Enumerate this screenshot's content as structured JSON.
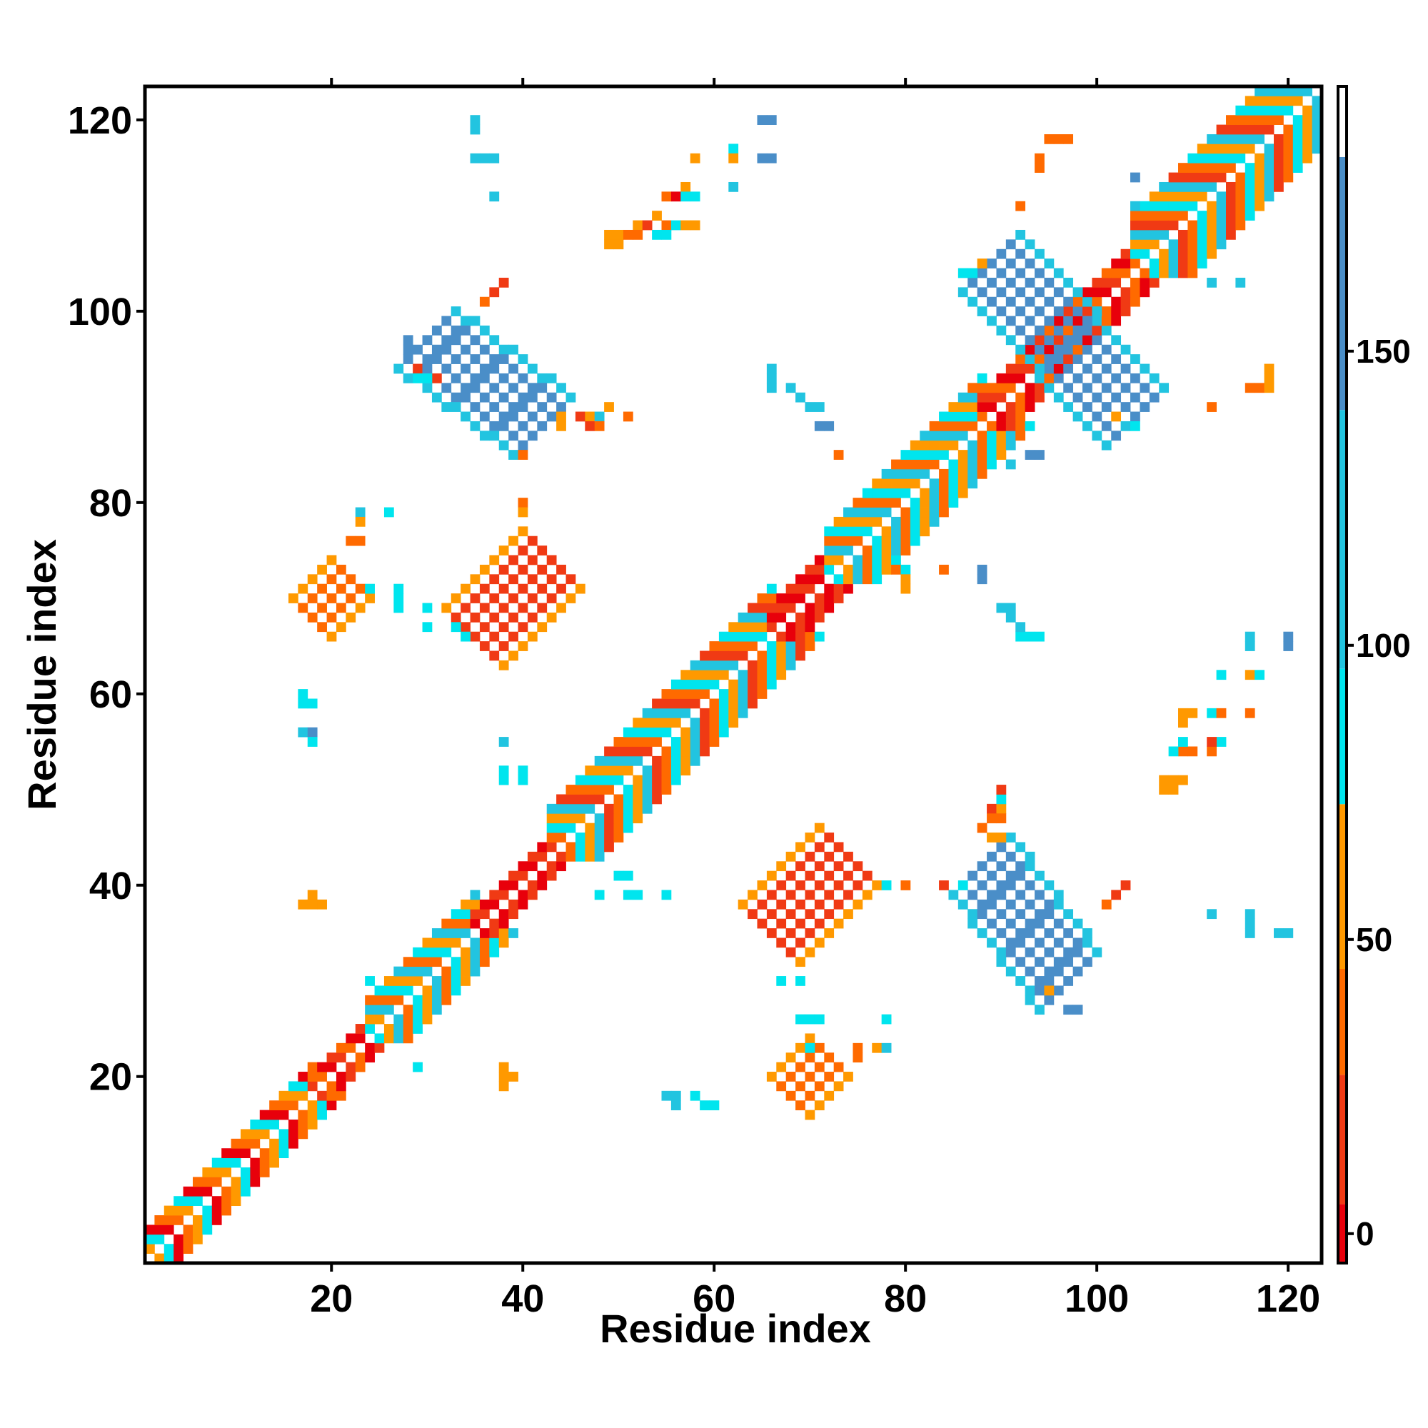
{
  "chart_data": {
    "type": "heatmap",
    "title": "",
    "xlabel": "Residue index",
    "ylabel": "Residue index",
    "xlim": [
      0.5,
      123.5
    ],
    "ylim": [
      0.5,
      123.5
    ],
    "x_ticks": [
      20,
      40,
      60,
      80,
      100,
      120
    ],
    "y_ticks": [
      20,
      40,
      60,
      80,
      100,
      120
    ],
    "colorbar": {
      "range": [
        -5,
        195
      ],
      "ticks": [
        0,
        50,
        100,
        150
      ],
      "bands": [
        {
          "from": -5,
          "to": 5,
          "color": "#e8000b"
        },
        {
          "from": 5,
          "to": 27,
          "color": "#f03a14"
        },
        {
          "from": 27,
          "to": 45,
          "color": "#ff6a00"
        },
        {
          "from": 45,
          "to": 73,
          "color": "#ff9900"
        },
        {
          "from": 73,
          "to": 96,
          "color": "#00e5ee"
        },
        {
          "from": 96,
          "to": 140,
          "color": "#22c4e0"
        },
        {
          "from": 140,
          "to": 183,
          "color": "#4a8ec8"
        },
        {
          "from": 183,
          "to": 195,
          "color": "#ffffff"
        }
      ]
    },
    "grid": false,
    "regions": {
      "diagonal": {
        "segments": [
          {
            "from": 1,
            "to": 18,
            "half_width": 3,
            "pattern": [
              "#e8000b",
              "#ff6a00",
              "#ff9900",
              "#00e5ee"
            ]
          },
          {
            "from": 18,
            "to": 24,
            "half_width": 2,
            "pattern": [
              "#e8000b",
              "#f03a14",
              "#ff6a00"
            ]
          },
          {
            "from": 24,
            "to": 35,
            "half_width": 4,
            "pattern": [
              "#ff6a00",
              "#00e5ee",
              "#ff9900",
              "#22c4e0"
            ]
          },
          {
            "from": 35,
            "to": 43,
            "half_width": 2,
            "pattern": [
              "#e8000b",
              "#f03a14"
            ]
          },
          {
            "from": 43,
            "to": 66,
            "half_width": 5,
            "pattern": [
              "#ff6a00",
              "#00e5ee",
              "#ff9900",
              "#22c4e0",
              "#f03a14"
            ]
          },
          {
            "from": 66,
            "to": 72,
            "half_width": 3,
            "pattern": [
              "#e8000b",
              "#f03a14"
            ]
          },
          {
            "from": 72,
            "to": 88,
            "half_width": 5,
            "pattern": [
              "#ff6a00",
              "#00e5ee",
              "#ff9900",
              "#22c4e0"
            ]
          },
          {
            "from": 88,
            "to": 104,
            "half_width": 3,
            "pattern": [
              "#e8000b",
              "#f03a14",
              "#ff6a00"
            ]
          },
          {
            "from": 104,
            "to": 124,
            "half_width": 6,
            "pattern": [
              "#ff6a00",
              "#00e5ee",
              "#ff9900",
              "#22c4e0",
              "#f03a14"
            ]
          }
        ]
      },
      "anti_diagonal_bands": [
        {
          "x_from": 30,
          "x_to": 42,
          "y_from": 97,
          "y_to": 88,
          "half_width": 2,
          "color": "#4a8ec8",
          "edge_color": "#22c4e0"
        },
        {
          "x_from": 88,
          "x_to": 97,
          "y_from": 42,
          "y_to": 30,
          "half_width": 2,
          "color": "#4a8ec8",
          "edge_color": "#22c4e0"
        },
        {
          "x_from": 89,
          "x_to": 104,
          "y_from": 105,
          "y_to": 89,
          "half_width": 2,
          "color": "#4a8ec8",
          "edge_color": "#22c4e0"
        }
      ],
      "parallel_bands": [
        {
          "x_from": 35,
          "x_to": 43,
          "y_from": 66,
          "y_to": 74,
          "half_width": 2,
          "color": "#f03a14",
          "edge_color": "#ff9900"
        },
        {
          "x_from": 66,
          "x_to": 74,
          "y_from": 35,
          "y_to": 43,
          "half_width": 2,
          "color": "#f03a14",
          "edge_color": "#ff9900"
        },
        {
          "x_from": 18,
          "x_to": 22,
          "y_from": 68,
          "y_to": 72,
          "half_width": 1,
          "color": "#ff6a00",
          "edge_color": "#ff9900"
        },
        {
          "x_from": 68,
          "x_to": 72,
          "y_from": 18,
          "y_to": 22,
          "half_width": 1,
          "color": "#ff6a00",
          "edge_color": "#ff9900"
        }
      ],
      "scattered_cells": [
        [
          35,
          120,
          "#22c4e0"
        ],
        [
          35,
          119,
          "#22c4e0"
        ],
        [
          35,
          116,
          "#22c4e0"
        ],
        [
          36,
          116,
          "#22c4e0"
        ],
        [
          37,
          116,
          "#22c4e0"
        ],
        [
          37,
          112,
          "#22c4e0"
        ],
        [
          65,
          120,
          "#4a8ec8"
        ],
        [
          66,
          120,
          "#4a8ec8"
        ],
        [
          65,
          116,
          "#4a8ec8"
        ],
        [
          66,
          116,
          "#4a8ec8"
        ],
        [
          62,
          117,
          "#00e5ee"
        ],
        [
          62,
          116,
          "#ff9900"
        ],
        [
          62,
          113,
          "#22c4e0"
        ],
        [
          58,
          116,
          "#ff9900"
        ],
        [
          57,
          113,
          "#ff9900"
        ],
        [
          55,
          112,
          "#ff6a00"
        ],
        [
          56,
          112,
          "#e8000b"
        ],
        [
          57,
          112,
          "#00e5ee"
        ],
        [
          58,
          112,
          "#00e5ee"
        ],
        [
          52,
          109,
          "#ff9900"
        ],
        [
          53,
          109,
          "#f03a14"
        ],
        [
          54,
          110,
          "#ff9900"
        ],
        [
          55,
          109,
          "#ff6a00"
        ],
        [
          56,
          109,
          "#00e5ee"
        ],
        [
          57,
          109,
          "#ff9900"
        ],
        [
          58,
          109,
          "#ff9900"
        ],
        [
          49,
          108,
          "#ff9900"
        ],
        [
          50,
          108,
          "#ff9900"
        ],
        [
          49,
          107,
          "#ff9900"
        ],
        [
          50,
          107,
          "#ff9900"
        ],
        [
          51,
          108,
          "#ff6a00"
        ],
        [
          52,
          108,
          "#ff6a00"
        ],
        [
          54,
          108,
          "#00e5ee"
        ],
        [
          55,
          108,
          "#00e5ee"
        ],
        [
          38,
          103,
          "#f03a14"
        ],
        [
          37,
          102,
          "#f03a14"
        ],
        [
          36,
          101,
          "#ff6a00"
        ],
        [
          28,
          97,
          "#4a8ec8"
        ],
        [
          28,
          96,
          "#4a8ec8"
        ],
        [
          29,
          94,
          "#f03a14"
        ],
        [
          29,
          93,
          "#00e5ee"
        ],
        [
          30,
          93,
          "#00e5ee"
        ],
        [
          31,
          93,
          "#f03a14"
        ],
        [
          44,
          89,
          "#ff9900"
        ],
        [
          44,
          88,
          "#ff9900"
        ],
        [
          46,
          89,
          "#f03a14"
        ],
        [
          47,
          89,
          "#ff9900"
        ],
        [
          47,
          88,
          "#f03a14"
        ],
        [
          48,
          89,
          "#22c4e0"
        ],
        [
          48,
          88,
          "#ff6a00"
        ],
        [
          49,
          90,
          "#ff9900"
        ],
        [
          51,
          89,
          "#ff6a00"
        ],
        [
          40,
          85,
          "#ff6a00"
        ],
        [
          40,
          80,
          "#ff6a00"
        ],
        [
          40,
          79,
          "#ff9900"
        ],
        [
          23,
          79,
          "#22c4e0"
        ],
        [
          23,
          78,
          "#ff9900"
        ],
        [
          26,
          79,
          "#00e5ee"
        ],
        [
          22,
          76,
          "#ff6a00"
        ],
        [
          23,
          76,
          "#ff6a00"
        ],
        [
          24,
          71,
          "#00e5ee"
        ],
        [
          27,
          71,
          "#00e5ee"
        ],
        [
          27,
          70,
          "#00e5ee"
        ],
        [
          27,
          69,
          "#00e5ee"
        ],
        [
          30,
          69,
          "#00e5ee"
        ],
        [
          30,
          67,
          "#00e5ee"
        ],
        [
          33,
          67,
          "#00e5ee"
        ],
        [
          34,
          66,
          "#00e5ee"
        ],
        [
          17,
          60,
          "#00e5ee"
        ],
        [
          17,
          59,
          "#00e5ee"
        ],
        [
          18,
          59,
          "#00e5ee"
        ],
        [
          17,
          56,
          "#22c4e0"
        ],
        [
          18,
          56,
          "#4a8ec8"
        ],
        [
          18,
          55,
          "#00e5ee"
        ],
        [
          38,
          55,
          "#22c4e0"
        ],
        [
          38,
          52,
          "#00e5ee"
        ],
        [
          40,
          52,
          "#00e5ee"
        ],
        [
          38,
          51,
          "#00e5ee"
        ],
        [
          40,
          51,
          "#00e5ee"
        ],
        [
          18,
          39,
          "#ff9900"
        ],
        [
          17,
          38,
          "#ff9900"
        ],
        [
          18,
          38,
          "#ff9900"
        ],
        [
          19,
          38,
          "#ff9900"
        ],
        [
          38,
          21,
          "#ff9900"
        ],
        [
          38,
          20,
          "#ff9900"
        ],
        [
          39,
          20,
          "#ff9900"
        ],
        [
          38,
          19,
          "#ff9900"
        ],
        [
          24,
          30,
          "#00e5ee"
        ],
        [
          29,
          21,
          "#00e5ee"
        ],
        [
          55,
          18,
          "#22c4e0"
        ],
        [
          56,
          18,
          "#22c4e0"
        ],
        [
          56,
          17,
          "#22c4e0"
        ],
        [
          58,
          18,
          "#00e5ee"
        ],
        [
          59,
          17,
          "#00e5ee"
        ],
        [
          60,
          17,
          "#00e5ee"
        ],
        [
          50,
          41,
          "#00e5ee"
        ],
        [
          51,
          41,
          "#00e5ee"
        ],
        [
          51,
          39,
          "#00e5ee"
        ],
        [
          52,
          39,
          "#00e5ee"
        ],
        [
          55,
          39,
          "#00e5ee"
        ],
        [
          48,
          39,
          "#00e5ee"
        ],
        [
          67,
          30,
          "#00e5ee"
        ],
        [
          69,
          30,
          "#00e5ee"
        ],
        [
          69,
          26,
          "#00e5ee"
        ],
        [
          70,
          26,
          "#00e5ee"
        ],
        [
          71,
          26,
          "#00e5ee"
        ],
        [
          78,
          26,
          "#00e5ee"
        ],
        [
          75,
          23,
          "#ff6a00"
        ],
        [
          75,
          22,
          "#ff6a00"
        ],
        [
          77,
          23,
          "#ff9900"
        ],
        [
          78,
          23,
          "#22c4e0"
        ],
        [
          70,
          23,
          "#00e5ee"
        ],
        [
          78,
          40,
          "#00e5ee"
        ],
        [
          80,
          40,
          "#ff6a00"
        ],
        [
          84,
          40,
          "#f03a14"
        ],
        [
          86,
          40,
          "#00e5ee"
        ],
        [
          97,
          27,
          "#4a8ec8"
        ],
        [
          98,
          27,
          "#4a8ec8"
        ],
        [
          95,
          29,
          "#ff9900"
        ],
        [
          89,
          48,
          "#f03a14"
        ],
        [
          90,
          48,
          "#ff9900"
        ],
        [
          89,
          47,
          "#ff6a00"
        ],
        [
          90,
          47,
          "#ff6a00"
        ],
        [
          90,
          49,
          "#00e5ee"
        ],
        [
          90,
          50,
          "#f03a14"
        ],
        [
          89,
          45,
          "#ff9900"
        ],
        [
          90,
          45,
          "#ff9900"
        ],
        [
          88,
          46,
          "#ff6a00"
        ],
        [
          101,
          38,
          "#ff6a00"
        ],
        [
          102,
          39,
          "#f03a14"
        ],
        [
          103,
          40,
          "#f03a14"
        ],
        [
          112,
          37,
          "#22c4e0"
        ],
        [
          116,
          37,
          "#22c4e0"
        ],
        [
          116,
          36,
          "#22c4e0"
        ],
        [
          116,
          35,
          "#22c4e0"
        ],
        [
          119,
          35,
          "#22c4e0"
        ],
        [
          120,
          35,
          "#22c4e0"
        ],
        [
          107,
          51,
          "#ff9900"
        ],
        [
          107,
          50,
          "#ff9900"
        ],
        [
          108,
          51,
          "#ff9900"
        ],
        [
          108,
          50,
          "#ff9900"
        ],
        [
          109,
          51,
          "#ff9900"
        ],
        [
          109,
          54,
          "#ff6a00"
        ],
        [
          108,
          54,
          "#00e5ee"
        ],
        [
          110,
          54,
          "#ff6a00"
        ],
        [
          109,
          55,
          "#00e5ee"
        ],
        [
          112,
          54,
          "#ff6a00"
        ],
        [
          113,
          55,
          "#00e5ee"
        ],
        [
          112,
          55,
          "#f03a14"
        ],
        [
          109,
          57,
          "#ff9900"
        ],
        [
          109,
          58,
          "#ff9900"
        ],
        [
          110,
          58,
          "#ff9900"
        ],
        [
          112,
          58,
          "#00e5ee"
        ],
        [
          113,
          58,
          "#ff6a00"
        ],
        [
          116,
          58,
          "#ff6a00"
        ],
        [
          113,
          62,
          "#00e5ee"
        ],
        [
          116,
          62,
          "#ff9900"
        ],
        [
          117,
          62,
          "#00e5ee"
        ],
        [
          116,
          66,
          "#22c4e0"
        ],
        [
          116,
          65,
          "#22c4e0"
        ],
        [
          120,
          66,
          "#4a8ec8"
        ],
        [
          120,
          65,
          "#4a8ec8"
        ],
        [
          92,
          66,
          "#00e5ee"
        ],
        [
          93,
          66,
          "#00e5ee"
        ],
        [
          94,
          66,
          "#00e5ee"
        ],
        [
          90,
          69,
          "#22c4e0"
        ],
        [
          91,
          69,
          "#22c4e0"
        ],
        [
          91,
          68,
          "#22c4e0"
        ],
        [
          92,
          67,
          "#22c4e0"
        ],
        [
          88,
          73,
          "#4a8ec8"
        ],
        [
          88,
          72,
          "#4a8ec8"
        ],
        [
          84,
          73,
          "#ff6a00"
        ],
        [
          79,
          73,
          "#ff6a00"
        ],
        [
          80,
          73,
          "#00e5ee"
        ],
        [
          80,
          72,
          "#ff9900"
        ],
        [
          80,
          71,
          "#ff9900"
        ],
        [
          79,
          74,
          "#00e5ee"
        ],
        [
          71,
          88,
          "#4a8ec8"
        ],
        [
          72,
          88,
          "#4a8ec8"
        ],
        [
          73,
          85,
          "#ff6a00"
        ],
        [
          66,
          94,
          "#22c4e0"
        ],
        [
          66,
          93,
          "#22c4e0"
        ],
        [
          66,
          92,
          "#22c4e0"
        ],
        [
          68,
          92,
          "#22c4e0"
        ],
        [
          69,
          91,
          "#22c4e0"
        ],
        [
          70,
          90,
          "#22c4e0"
        ],
        [
          71,
          90,
          "#22c4e0"
        ],
        [
          93,
          85,
          "#4a8ec8"
        ],
        [
          94,
          85,
          "#4a8ec8"
        ],
        [
          91,
          84,
          "#22c4e0"
        ],
        [
          95,
          118,
          "#ff6a00"
        ],
        [
          96,
          118,
          "#ff6a00"
        ],
        [
          97,
          118,
          "#ff6a00"
        ],
        [
          94,
          116,
          "#ff6a00"
        ],
        [
          94,
          115,
          "#ff6a00"
        ],
        [
          92,
          111,
          "#ff6a00"
        ],
        [
          104,
          114,
          "#4a8ec8"
        ],
        [
          104,
          111,
          "#22c4e0"
        ],
        [
          112,
          103,
          "#22c4e0"
        ],
        [
          115,
          103,
          "#22c4e0"
        ],
        [
          116,
          92,
          "#ff6a00"
        ],
        [
          117,
          92,
          "#ff6a00"
        ],
        [
          118,
          94,
          "#ff9900"
        ],
        [
          118,
          93,
          "#ff9900"
        ],
        [
          118,
          92,
          "#ff9900"
        ],
        [
          112,
          90,
          "#ff6a00"
        ],
        [
          102,
          89,
          "#ff9900"
        ],
        [
          104,
          88,
          "#00e5ee"
        ],
        [
          103,
          88,
          "#22c4e0"
        ],
        [
          88,
          105,
          "#ff9900"
        ],
        [
          87,
          104,
          "#00e5ee"
        ],
        [
          86,
          104,
          "#00e5ee"
        ]
      ]
    }
  }
}
